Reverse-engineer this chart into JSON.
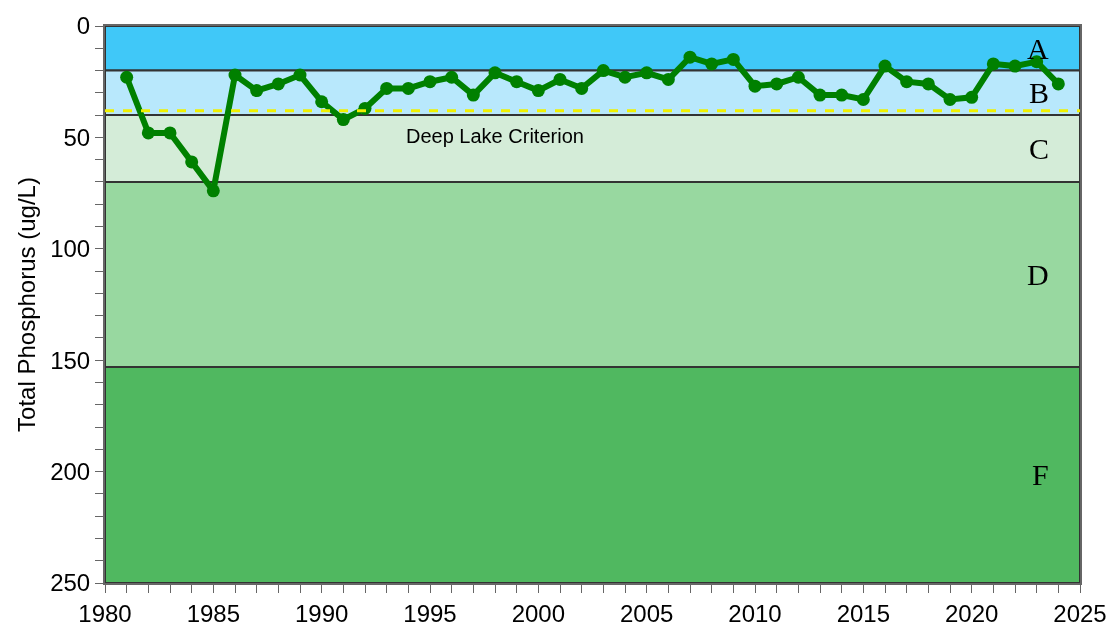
{
  "chart_data": {
    "type": "line",
    "ylabel": "Total Phosphorus (ug/L)",
    "x": [
      1981,
      1982,
      1983,
      1984,
      1985,
      1986,
      1987,
      1988,
      1989,
      1990,
      1991,
      1992,
      1993,
      1994,
      1995,
      1996,
      1997,
      1998,
      1999,
      2000,
      2001,
      2002,
      2003,
      2004,
      2005,
      2006,
      2007,
      2008,
      2009,
      2010,
      2011,
      2012,
      2013,
      2014,
      2015,
      2016,
      2017,
      2018,
      2019,
      2020,
      2021,
      2022,
      2023,
      2024
    ],
    "series": [
      {
        "color": "#008000",
        "values": [
          23,
          48,
          48,
          61,
          74,
          22,
          29,
          26,
          22,
          34,
          42,
          37,
          28,
          28,
          25,
          23,
          31,
          21,
          25,
          29,
          24,
          28,
          20,
          23,
          21,
          24,
          14,
          17,
          15,
          27,
          26,
          23,
          31,
          31,
          33,
          18,
          25,
          26,
          33,
          32,
          17,
          18,
          16,
          26
        ]
      }
    ],
    "xlim": [
      1980,
      2025
    ],
    "xticks": [
      1980,
      {
        "value": 1981,
        "label": null
      },
      {
        "value": 1982,
        "label": null
      },
      {
        "value": 1983,
        "label": null
      },
      {
        "value": 1984,
        "label": null
      },
      1985,
      {
        "value": 1986,
        "label": null
      },
      {
        "value": 1987,
        "label": null
      },
      {
        "value": 1988,
        "label": null
      },
      {
        "value": 1989,
        "label": null
      },
      1990,
      {
        "value": 1991,
        "label": null
      },
      {
        "value": 1992,
        "label": null
      },
      {
        "value": 1993,
        "label": null
      },
      {
        "value": 1994,
        "label": null
      },
      1995,
      {
        "value": 1996,
        "label": null
      },
      {
        "value": 1997,
        "label": null
      },
      {
        "value": 1998,
        "label": null
      },
      {
        "value": 1999,
        "label": null
      },
      2000,
      {
        "value": 2001,
        "label": null
      },
      {
        "value": 2002,
        "label": null
      },
      {
        "value": 2003,
        "label": null
      },
      {
        "value": 2004,
        "label": null
      },
      2005,
      {
        "value": 2006,
        "label": null
      },
      {
        "value": 2007,
        "label": null
      },
      {
        "value": 2008,
        "label": null
      },
      {
        "value": 2009,
        "label": null
      },
      2010,
      {
        "value": 2011,
        "label": null
      },
      {
        "value": 2012,
        "label": null
      },
      {
        "value": 2013,
        "label": null
      },
      {
        "value": 2014,
        "label": null
      },
      2015,
      {
        "value": 2016,
        "label": null
      },
      {
        "value": 2017,
        "label": null
      },
      {
        "value": 2018,
        "label": null
      },
      {
        "value": 2019,
        "label": null
      },
      2020,
      {
        "value": 2021,
        "label": null
      },
      {
        "value": 2022,
        "label": null
      },
      {
        "value": 2023,
        "label": null
      },
      {
        "value": 2024,
        "label": null
      },
      2025
    ],
    "ylim": [
      250,
      0
    ],
    "yticks": [
      0,
      {
        "value": 10,
        "label": null
      },
      {
        "value": 20,
        "label": null
      },
      {
        "value": 30,
        "label": null
      },
      {
        "value": 40,
        "label": null
      },
      50,
      {
        "value": 60,
        "label": null
      },
      {
        "value": 70,
        "label": null
      },
      {
        "value": 80,
        "label": null
      },
      {
        "value": 90,
        "label": null
      },
      100,
      {
        "value": 110,
        "label": null
      },
      {
        "value": 120,
        "label": null
      },
      {
        "value": 130,
        "label": null
      },
      {
        "value": 140,
        "label": null
      },
      150,
      {
        "value": 160,
        "label": null
      },
      {
        "value": 170,
        "label": null
      },
      {
        "value": 180,
        "label": null
      },
      {
        "value": 190,
        "label": null
      },
      200,
      {
        "value": 210,
        "label": null
      },
      {
        "value": 220,
        "label": null
      },
      {
        "value": 230,
        "label": null
      },
      {
        "value": 240,
        "label": null
      },
      250
    ],
    "bands": [
      {
        "axis": "y",
        "from": 0,
        "to": 20,
        "label": "A",
        "color": "#40c8f8"
      },
      {
        "axis": "y",
        "from": 20,
        "to": 40,
        "label": "B",
        "color": "#b8e8fc"
      },
      {
        "axis": "y",
        "from": 40,
        "to": 70,
        "label": "C",
        "color": "#d4ecd8"
      },
      {
        "axis": "y",
        "from": 70,
        "to": 153,
        "label": "D",
        "color": "#98d8a0"
      },
      {
        "axis": "y",
        "from": 153,
        "to": 250,
        "label": "F",
        "color": "#50b860"
      }
    ],
    "ref_lines": [
      {
        "axis": "y",
        "value": 38,
        "label": "Deep Lake Criterion",
        "color": "#f0f000",
        "line_style": "dashed"
      }
    ],
    "marker": "circle",
    "line_style": "solid",
    "grid": false
  }
}
